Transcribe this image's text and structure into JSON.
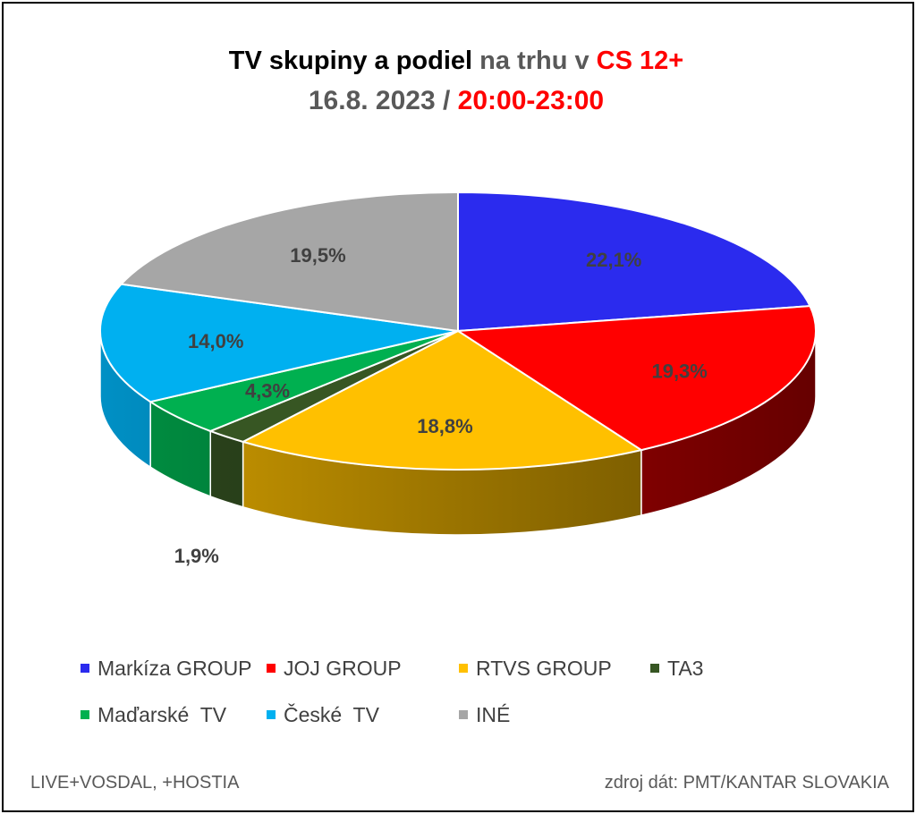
{
  "title": {
    "line1": [
      {
        "text": "TV skupiny a podiel ",
        "color": "#000000"
      },
      {
        "text": "na trhu v ",
        "color": "#595959"
      },
      {
        "text": "CS 12+",
        "color": "#ff0000"
      }
    ],
    "line2": [
      {
        "text": "16.8. 2023 / ",
        "color": "#595959"
      },
      {
        "text": "20:00-23:00",
        "color": "#ff0000"
      }
    ]
  },
  "chart_data": {
    "type": "pie",
    "style": "3d",
    "categories": [
      "Markíza GROUP",
      "JOJ GROUP",
      "RTVS GROUP",
      "TA3",
      "Maďarské  TV",
      "České  TV",
      "INÉ"
    ],
    "values": [
      22.1,
      19.3,
      18.8,
      1.9,
      4.3,
      14.0,
      19.5
    ],
    "labels": [
      "22,1%",
      "19,3%",
      "18,8%",
      "1,9%",
      "4,3%",
      "14,0%",
      "19,5%"
    ],
    "colors": [
      "#2b2bee",
      "#ff0000",
      "#ffc000",
      "#375623",
      "#00b050",
      "#00b0f0",
      "#a6a6a6"
    ],
    "legend_position": "bottom"
  },
  "footer": {
    "left": "LIVE+VOSDAL, +HOSTIA",
    "right": "zdroj dát: PMT/KANTAR SLOVAKIA"
  }
}
